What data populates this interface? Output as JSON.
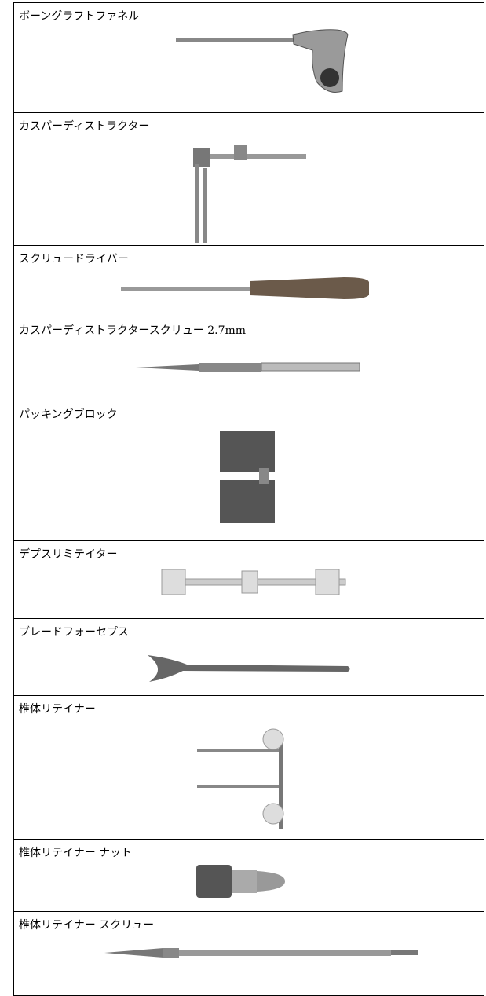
{
  "rows": [
    {
      "label": "ボーングラフトファネル"
    },
    {
      "label": "カスパーディストラクター"
    },
    {
      "label": "スクリュードライバー"
    },
    {
      "label": "カスパーディストラクタースクリュー 2.7mm"
    },
    {
      "label": "パッキングブロック"
    },
    {
      "label": "デプスリミテイター"
    },
    {
      "label": "ブレードフォーセプス"
    },
    {
      "label": "椎体リテイナー"
    },
    {
      "label": "椎体リテイナー ナット"
    },
    {
      "label": "椎体リテイナー スクリュー"
    }
  ]
}
